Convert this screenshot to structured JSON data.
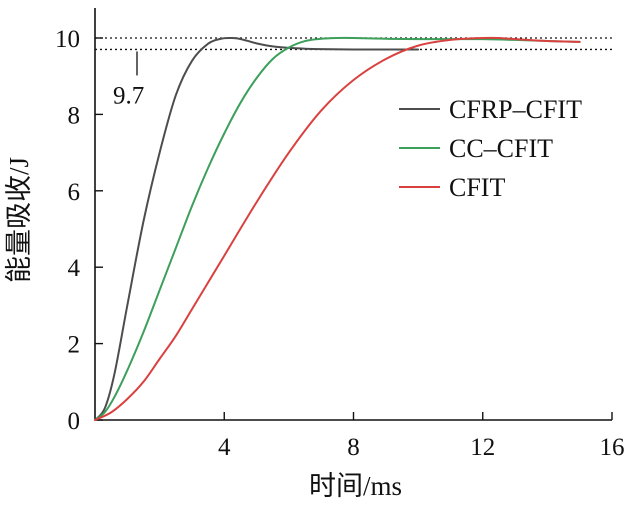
{
  "chart_data": {
    "type": "line",
    "xlabel": "时间/ms",
    "ylabel": "能量吸收/J",
    "xlim": [
      0,
      16
    ],
    "ylim": [
      0,
      11
    ],
    "x_ticks": [
      {
        "value": 4,
        "label": "4"
      },
      {
        "value": 8,
        "label": "8"
      },
      {
        "value": 12,
        "label": "12"
      },
      {
        "value": 16,
        "label": "16"
      }
    ],
    "y_ticks": [
      {
        "value": 0,
        "label": "0"
      },
      {
        "value": 2,
        "label": "2"
      },
      {
        "value": 4,
        "label": "4"
      },
      {
        "value": 6,
        "label": "6"
      },
      {
        "value": 8,
        "label": "8"
      },
      {
        "value": 10,
        "label": "10"
      }
    ],
    "grid": false,
    "legend_position": "right",
    "reference_lines": [
      {
        "y": 10,
        "style": "dotted"
      },
      {
        "y": 9.7,
        "style": "dotted",
        "label": "9.7"
      }
    ],
    "series": [
      {
        "name": "CFRP–CFIT",
        "color": "#4d4d4d",
        "x": [
          0,
          0.3,
          0.6,
          1.0,
          1.5,
          2.0,
          2.5,
          3.0,
          3.5,
          3.9,
          4.2,
          4.4,
          4.7,
          5.0,
          5.5,
          6.0,
          6.5,
          7.0,
          8.0,
          9.0,
          10.0
        ],
        "y": [
          0,
          0.3,
          1.2,
          3.0,
          5.2,
          7.0,
          8.5,
          9.4,
          9.85,
          9.98,
          10.0,
          9.99,
          9.93,
          9.86,
          9.78,
          9.74,
          9.72,
          9.71,
          9.7,
          9.7,
          9.7
        ]
      },
      {
        "name": "CC–CFIT",
        "color": "#3c9f5a",
        "x": [
          0,
          0.3,
          0.6,
          1.0,
          1.5,
          2.0,
          2.5,
          3.0,
          3.5,
          4.0,
          4.5,
          5.0,
          5.5,
          6.0,
          6.5,
          7.0,
          7.5,
          8.0,
          9.0,
          10.0,
          11.0,
          12.0,
          13.0,
          14.0,
          15.0
        ],
        "y": [
          0,
          0.2,
          0.6,
          1.3,
          2.3,
          3.4,
          4.5,
          5.6,
          6.6,
          7.5,
          8.3,
          8.95,
          9.45,
          9.75,
          9.92,
          9.98,
          10.0,
          10.0,
          9.98,
          9.97,
          9.97,
          9.97,
          9.95,
          9.92,
          9.9
        ]
      },
      {
        "name": "CFIT",
        "color": "#d9413f",
        "x": [
          0,
          0.5,
          1.0,
          1.5,
          2.0,
          2.5,
          3.0,
          3.5,
          4.0,
          5.0,
          6.0,
          7.0,
          8.0,
          9.0,
          10.0,
          11.0,
          12.0,
          12.5,
          13.0,
          14.0,
          15.0
        ],
        "y": [
          0,
          0.2,
          0.55,
          1.0,
          1.6,
          2.2,
          2.9,
          3.6,
          4.3,
          5.7,
          7.0,
          8.1,
          8.9,
          9.45,
          9.8,
          9.95,
          10.0,
          10.0,
          9.97,
          9.92,
          9.9
        ]
      }
    ]
  }
}
